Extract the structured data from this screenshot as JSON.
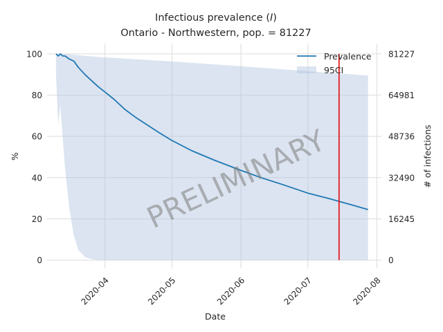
{
  "chart_data": {
    "type": "line",
    "title": "Infectious prevalence (",
    "title_symbol": "I",
    "title_close": ")",
    "subtitle": "Ontario - Northwestern, pop. = 81227",
    "xlabel": "Date",
    "ylabel_left": "%",
    "ylabel_right": "# of infections",
    "x_range": [
      "2020-03-06",
      "2020-08-03"
    ],
    "ylim": [
      -4,
      105
    ],
    "x_ticks": [
      "2020-04-01",
      "2020-05-01",
      "2020-06-01",
      "2020-07-01",
      "2020-08-01"
    ],
    "x_tick_labels": [
      "2020-04",
      "2020-05",
      "2020-06",
      "2020-07",
      "2020-08"
    ],
    "y_ticks_left": [
      0,
      20,
      40,
      60,
      80,
      100
    ],
    "y_tick_labels_left": [
      "0",
      "20",
      "40",
      "60",
      "80",
      "100"
    ],
    "y_tick_labels_right": [
      "0",
      "16245",
      "32490",
      "48736",
      "64981",
      "81227"
    ],
    "grid": true,
    "legend_position": "top-right",
    "series": [
      {
        "name": "Prevalence",
        "color": "#1f77b4",
        "x": [
          "2020-03-10",
          "2020-03-11",
          "2020-03-12",
          "2020-03-13",
          "2020-03-14",
          "2020-03-16",
          "2020-03-18",
          "2020-03-20",
          "2020-03-23",
          "2020-03-26",
          "2020-03-29",
          "2020-04-01",
          "2020-04-05",
          "2020-04-10",
          "2020-04-15",
          "2020-04-20",
          "2020-04-25",
          "2020-05-01",
          "2020-05-10",
          "2020-05-20",
          "2020-06-01",
          "2020-06-10",
          "2020-06-20",
          "2020-07-01",
          "2020-07-10",
          "2020-07-20",
          "2020-07-28"
        ],
        "y": [
          100,
          99,
          100,
          99,
          99,
          97.5,
          96.5,
          93.5,
          90,
          87,
          84,
          81.5,
          78,
          73,
          69,
          65.5,
          62,
          58,
          53,
          48.5,
          43.5,
          40,
          36.5,
          32.5,
          30,
          27,
          24.5
        ]
      },
      {
        "name": "95CI",
        "color": "#b0c4de",
        "x": [
          "2020-03-10",
          "2020-03-11",
          "2020-03-12",
          "2020-03-13",
          "2020-03-14",
          "2020-03-16",
          "2020-03-18",
          "2020-03-20",
          "2020-03-23",
          "2020-03-26",
          "2020-03-29",
          "2020-04-01",
          "2020-04-15",
          "2020-05-01",
          "2020-06-01",
          "2020-07-01",
          "2020-07-28"
        ],
        "upper": [
          100,
          100,
          100,
          100,
          100,
          99.8,
          99.6,
          99.4,
          99,
          98.8,
          98.5,
          98.3,
          97.4,
          96.3,
          94,
          91.6,
          89.5
        ],
        "lower": [
          90,
          66,
          75,
          60,
          45,
          25,
          12,
          5,
          1.5,
          0.5,
          0.1,
          0,
          0,
          0,
          0,
          0,
          0
        ]
      }
    ],
    "vline": {
      "x": "2020-07-15",
      "y_from": 0,
      "y_to": 100,
      "color": "#e41a1c"
    },
    "annotation": "PRELIMINARY"
  }
}
